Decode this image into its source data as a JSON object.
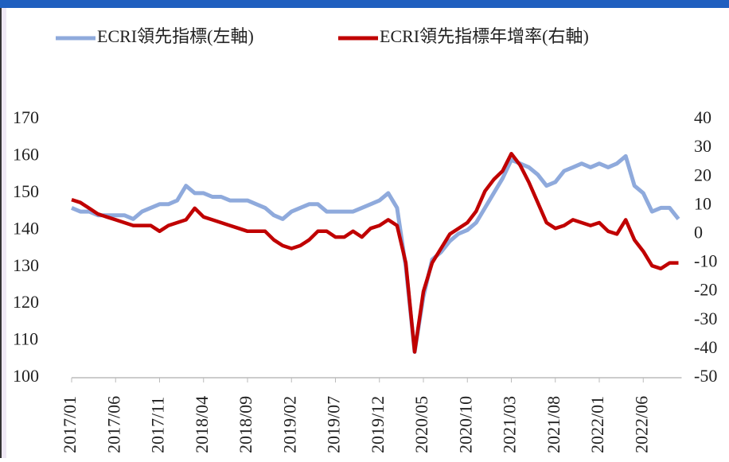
{
  "chart_data": {
    "type": "line",
    "categories": [
      "2017/01",
      null,
      null,
      null,
      null,
      "2017/06",
      null,
      null,
      null,
      null,
      "2017/11",
      null,
      null,
      null,
      null,
      "2018/04",
      null,
      null,
      null,
      null,
      "2018/09",
      null,
      null,
      null,
      null,
      "2019/02",
      null,
      null,
      null,
      null,
      "2019/07",
      null,
      null,
      null,
      null,
      "2019/12",
      null,
      null,
      null,
      null,
      "2020/05",
      null,
      null,
      null,
      null,
      "2020/10",
      null,
      null,
      null,
      null,
      "2021/03",
      null,
      null,
      null,
      null,
      "2021/08",
      null,
      null,
      null,
      null,
      "2022/01",
      null,
      null,
      null,
      null,
      "2022/06",
      null,
      null,
      null,
      null
    ],
    "series": [
      {
        "name": "ECRI領先指標(左軸)",
        "color": "#8faadc",
        "values": [
          146,
          145,
          145,
          144,
          144,
          144,
          144,
          143,
          145,
          146,
          147,
          147,
          148,
          152,
          150,
          150,
          149,
          149,
          148,
          148,
          148,
          147,
          146,
          144,
          143,
          145,
          146,
          147,
          147,
          145,
          145,
          145,
          145,
          146,
          147,
          148,
          150,
          146,
          130,
          107,
          122,
          132,
          134,
          137,
          139,
          140,
          142,
          146,
          150,
          154,
          159,
          158,
          157,
          155,
          152,
          153,
          156,
          157,
          158,
          157,
          158,
          157,
          158,
          160,
          152,
          150,
          145,
          146,
          146,
          143
        ]
      },
      {
        "name": "ECRI領先指標年增率(右軸)",
        "color": "#c00000",
        "axis": "y2",
        "values": [
          12,
          11,
          9,
          7,
          6,
          5,
          4,
          3,
          3,
          3,
          1,
          3,
          4,
          5,
          9,
          6,
          5,
          4,
          3,
          2,
          1,
          1,
          1,
          -2,
          -4,
          -5,
          -4,
          -2,
          1,
          1,
          -1,
          -1,
          1,
          -1,
          2,
          3,
          5,
          3,
          -10,
          -41,
          -20,
          -10,
          -5,
          0,
          2,
          4,
          8,
          15,
          19,
          22,
          28,
          24,
          18,
          11,
          4,
          2,
          3,
          5,
          4,
          3,
          4,
          1,
          0,
          5,
          -2,
          -6,
          -11,
          -12,
          -10,
          -10
        ]
      }
    ],
    "ylim": [
      100,
      170
    ],
    "yticks": [
      100,
      110,
      120,
      130,
      140,
      150,
      160,
      170
    ],
    "y2lim": [
      -50,
      40
    ],
    "y2ticks": [
      -50,
      -40,
      -30,
      -20,
      -10,
      0,
      10,
      20,
      30,
      40
    ],
    "legend": "top"
  }
}
